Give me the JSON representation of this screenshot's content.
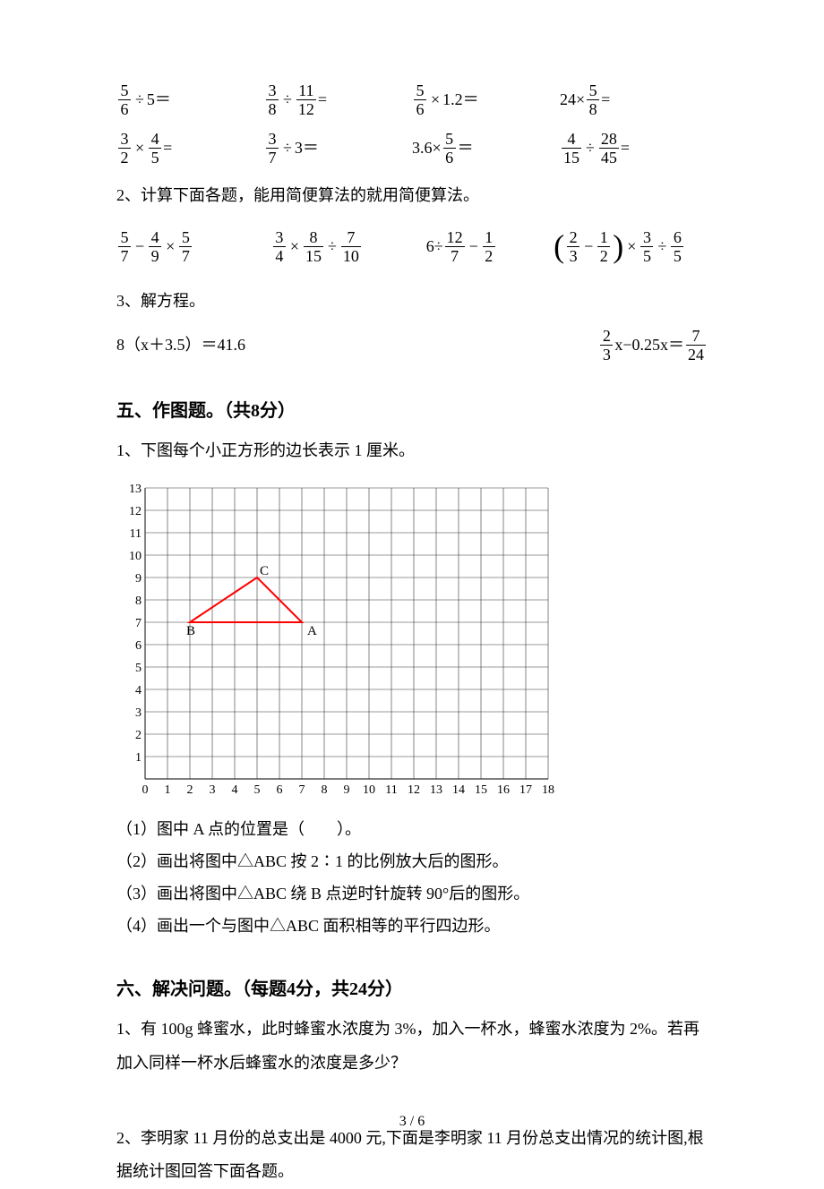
{
  "grid1": {
    "r1c1": {
      "n1": "5",
      "d1": "6",
      "op": "÷",
      "rhs": "5＝"
    },
    "r1c2": {
      "n1": "3",
      "d1": "8",
      "op": "÷",
      "n2": "11",
      "d2": "12",
      "tail": "="
    },
    "r1c3": {
      "n1": "5",
      "d1": "6",
      "op": "×",
      "rhs": "1.2＝"
    },
    "r1c4": {
      "lhs": "24×",
      "n1": "5",
      "d1": "8",
      "tail": "="
    },
    "r2c1": {
      "n1": "3",
      "d1": "2",
      "op": "×",
      "n2": "4",
      "d2": "5",
      "tail": "="
    },
    "r2c2": {
      "n1": "3",
      "d1": "7",
      "op": "÷",
      "rhs": "3＝"
    },
    "r2c3": {
      "lhs": "3.6×",
      "n1": "5",
      "d1": "6",
      "tail": "＝"
    },
    "r2c4": {
      "n1": "4",
      "d1": "15",
      "op": "÷",
      "n2": "28",
      "d2": "45",
      "tail": "="
    }
  },
  "line2": "2、计算下面各题，能用简便算法的就用简便算法。",
  "grid2": {
    "c1": {
      "n1": "5",
      "d1": "7",
      "op1": "−",
      "n2": "4",
      "d2": "9",
      "op2": "×",
      "n3": "5",
      "d3": "7"
    },
    "c2": {
      "n1": "3",
      "d1": "4",
      "op1": "×",
      "n2": "8",
      "d2": "15",
      "op2": "÷",
      "n3": "7",
      "d3": "10"
    },
    "c3": {
      "lhs": "6÷",
      "n1": "12",
      "d1": "7",
      "op1": "−",
      "n2": "1",
      "d2": "2"
    },
    "c4": {
      "p1n": "2",
      "p1d": "3",
      "pop": "−",
      "p2n": "1",
      "p2d": "2",
      "op1": "×",
      "n1": "3",
      "d1": "5",
      "op2": "÷",
      "n2": "6",
      "d2": "5"
    }
  },
  "line3": "3、解方程。",
  "eqs": {
    "e1": "8（x＋3.5）＝41.6",
    "e2": {
      "n1": "2",
      "d1": "3",
      "mid": "x−0.25x＝",
      "n2": "7",
      "d2": "24"
    }
  },
  "section5": "五、作图题。（共8分）",
  "q5intro": "1、下图每个小正方形的边长表示 1 厘米。",
  "chart": {
    "yTicks": [
      "13",
      "12",
      "11",
      "10",
      "9",
      "8",
      "7",
      "6",
      "5",
      "4",
      "3",
      "2",
      "1"
    ],
    "xTicks": [
      "0",
      "1",
      "2",
      "3",
      "4",
      "5",
      "6",
      "7",
      "8",
      "9",
      "10",
      "11",
      "12",
      "13",
      "14",
      "15",
      "16",
      "17",
      "18"
    ],
    "gridColor": "#333333",
    "bg": "#ffffff",
    "lineColor": "#ff0000",
    "points": {
      "B": {
        "x": 2,
        "y": 7,
        "label": "B"
      },
      "C": {
        "x": 5,
        "y": 9,
        "label": "C"
      },
      "A": {
        "x": 7,
        "y": 7,
        "label": "A"
      }
    }
  },
  "q5_1": "（1）图中 A 点的位置是（　　）。",
  "q5_2": "（2）画出将图中△ABC 按 2∶1 的比例放大后的图形。",
  "q5_3": "（3）画出将图中△ABC 绕 B 点逆时针旋转 90°后的图形。",
  "q5_4": "（4）画出一个与图中△ABC 面积相等的平行四边形。",
  "section6": "六、解决问题。（每题4分，共24分）",
  "q6_1": "1、有 100g 蜂蜜水，此时蜂蜜水浓度为 3%，加入一杯水，蜂蜜水浓度为 2%。若再加入同样一杯水后蜂蜜水的浓度是多少？",
  "q6_2": "2、李明家 11 月份的总支出是 4000 元,下面是李明家 11 月份总支出情况的统计图,根据统计图回答下面各题。",
  "footer": "3 / 6"
}
